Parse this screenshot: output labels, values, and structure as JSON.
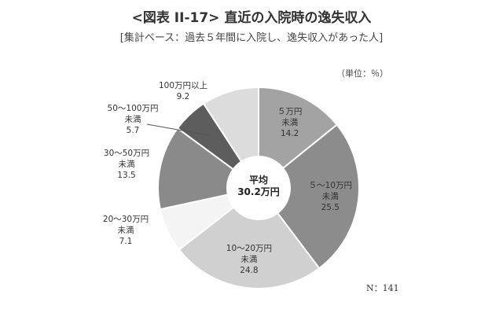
{
  "title": "<図表 II-17> 直近の入院時の逸失収入",
  "subtitle": "[集計ベース：過去５年間に入院し、逸失収入があった人]",
  "unit_label": "（単位：％）",
  "sample_label": "N：141",
  "center": {
    "line1": "平均",
    "line2": "30.2万円"
  },
  "chart_data": {
    "type": "pie",
    "title": "<図表 II-17> 直近の入院時の逸失収入",
    "categories": [
      "５万円未満",
      "５～10万円未満",
      "10～20万円未満",
      "20～30万円未満",
      "30～50万円未満",
      "50～100万円未満",
      "100万円以上"
    ],
    "values": [
      14.2,
      25.5,
      24.8,
      7.1,
      13.5,
      5.7,
      9.2
    ],
    "colors": [
      "#a3a3a3",
      "#8c8c8c",
      "#d0d0d0",
      "#f4f4f4",
      "#8a8a8a",
      "#5d5d5d",
      "#dcdcdc"
    ],
    "label_lines": [
      [
        "５万円",
        "未満",
        "14.2"
      ],
      [
        "５～10万円",
        "未満",
        "25.5"
      ],
      [
        "10～20万円",
        "未満",
        "24.8"
      ],
      [
        "20～30万円",
        "未満",
        "7.1"
      ],
      [
        "30～50万円",
        "未満",
        "13.5"
      ],
      [
        "50～100万円",
        "未満",
        "5.7"
      ],
      [
        "100万円以上",
        "9.2"
      ]
    ],
    "donut": true,
    "start": "top",
    "direction": "clockwise",
    "legend": "none"
  }
}
